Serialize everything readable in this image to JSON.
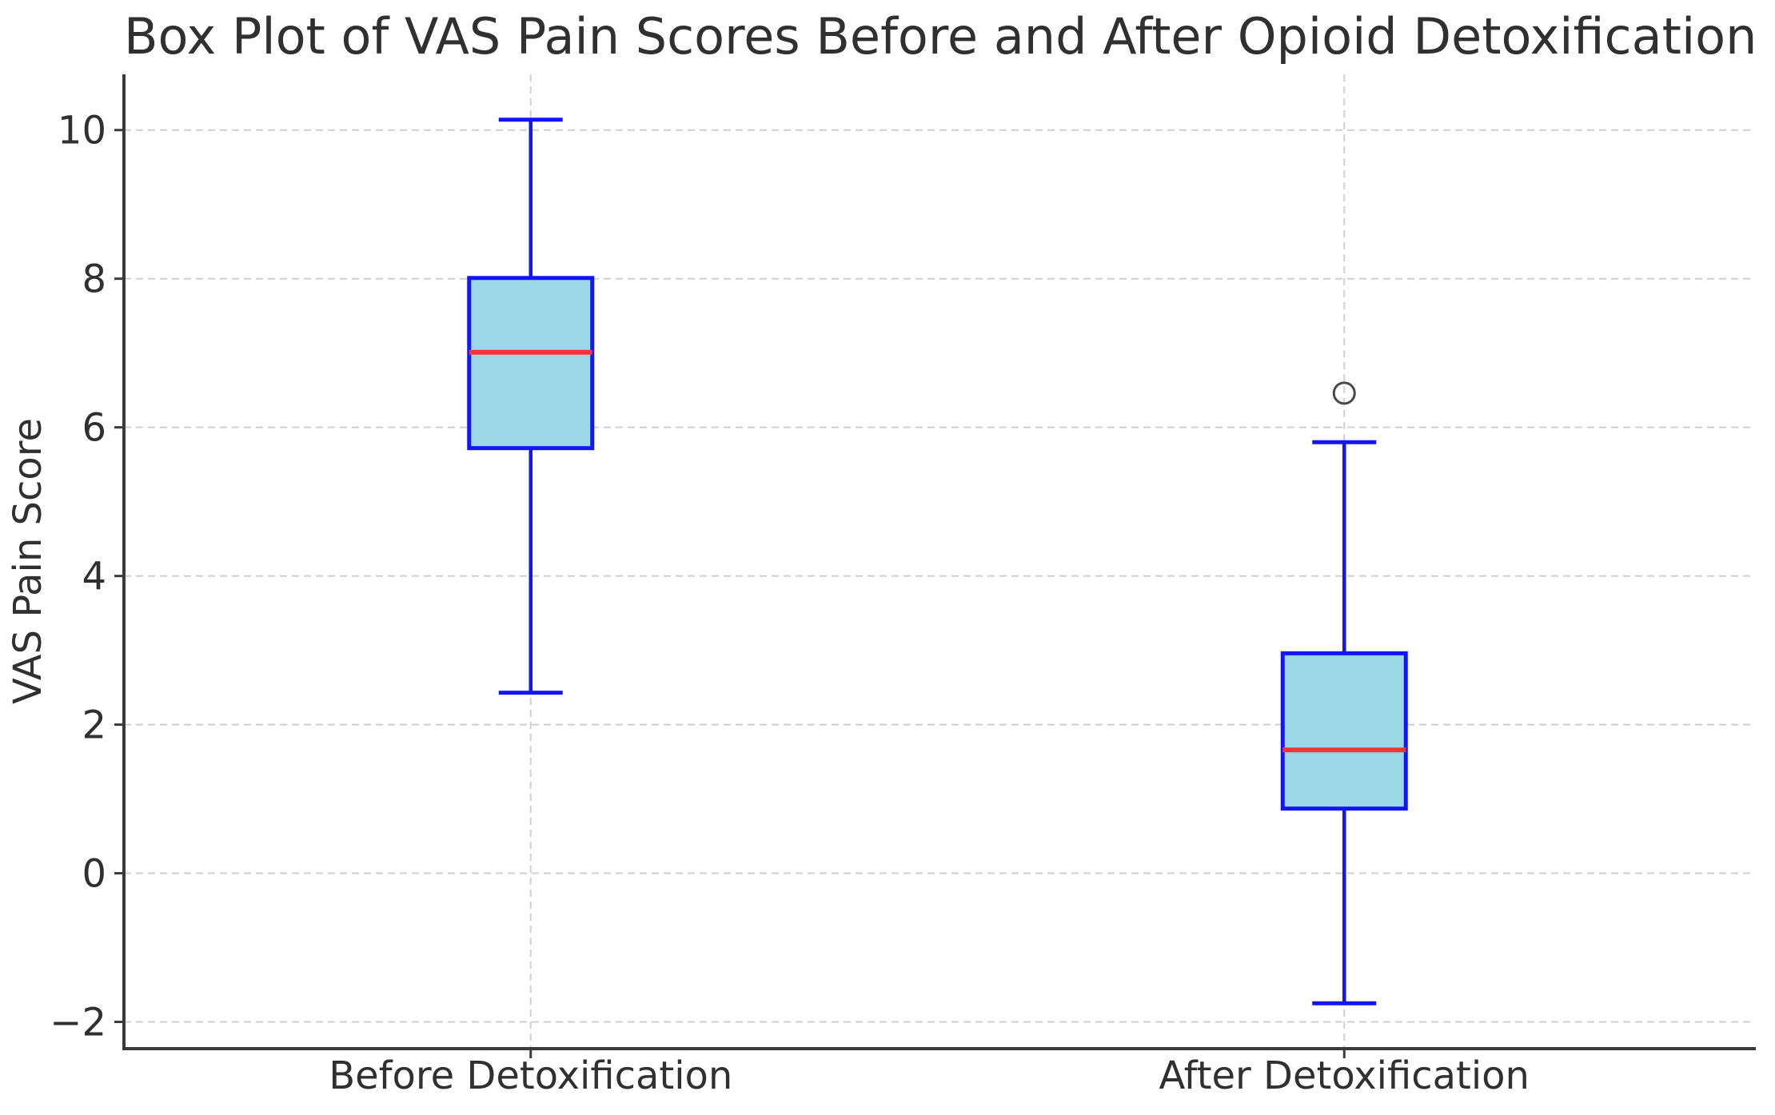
{
  "chart_data": {
    "type": "boxplot",
    "title": "Box Plot of VAS Pain Scores Before and After Opioid Detoxification",
    "ylabel": "VAS Pain Score",
    "xlabel": "",
    "categories": [
      "Before Detoxification",
      "After Detoxification"
    ],
    "series": [
      {
        "name": "Before Detoxification",
        "whisker_low": 2.43,
        "q1": 5.72,
        "median": 7.01,
        "q3": 8.01,
        "whisker_high": 10.14,
        "outliers": []
      },
      {
        "name": "After Detoxification",
        "whisker_low": -1.75,
        "q1": 0.87,
        "median": 1.66,
        "q3": 2.96,
        "whisker_high": 5.8,
        "outliers": [
          6.46
        ]
      }
    ],
    "ylim": [
      -2.36,
      10.75
    ],
    "yticks": [
      10,
      8,
      6,
      4,
      2,
      0,
      -2
    ],
    "grid": true,
    "grid_style": "dashed",
    "legend": false,
    "colors": {
      "background": "#FFFFFF",
      "box_fill": "#9AD8E6",
      "box_edge": "#1414FA",
      "whisker": "#1414FA",
      "median": "#F8333C",
      "grid": "#CFCFCF",
      "spine": "#3A3A3A",
      "text": "#303030",
      "outlier_edge": "#4A4A4A"
    }
  }
}
